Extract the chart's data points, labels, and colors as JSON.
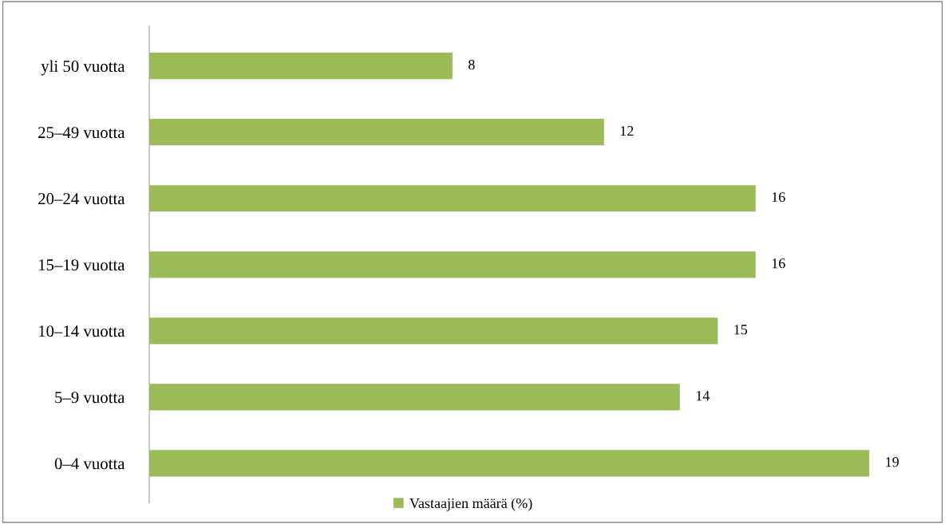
{
  "chart_data": {
    "type": "bar",
    "orientation": "horizontal",
    "categories": [
      "yli 50 vuotta",
      "25–49 vuotta",
      "20–24 vuotta",
      "15–19 vuotta",
      "10–14 vuotta",
      "5–9 vuotta",
      "0–4 vuotta"
    ],
    "series": [
      {
        "name": "Vastaajien määrä (%)",
        "color": "#9bbb59",
        "values": [
          8,
          12,
          16,
          16,
          15,
          14,
          19
        ]
      }
    ],
    "data_labels": true,
    "legend": "bottom",
    "grid": false,
    "tick_labels": "y"
  }
}
